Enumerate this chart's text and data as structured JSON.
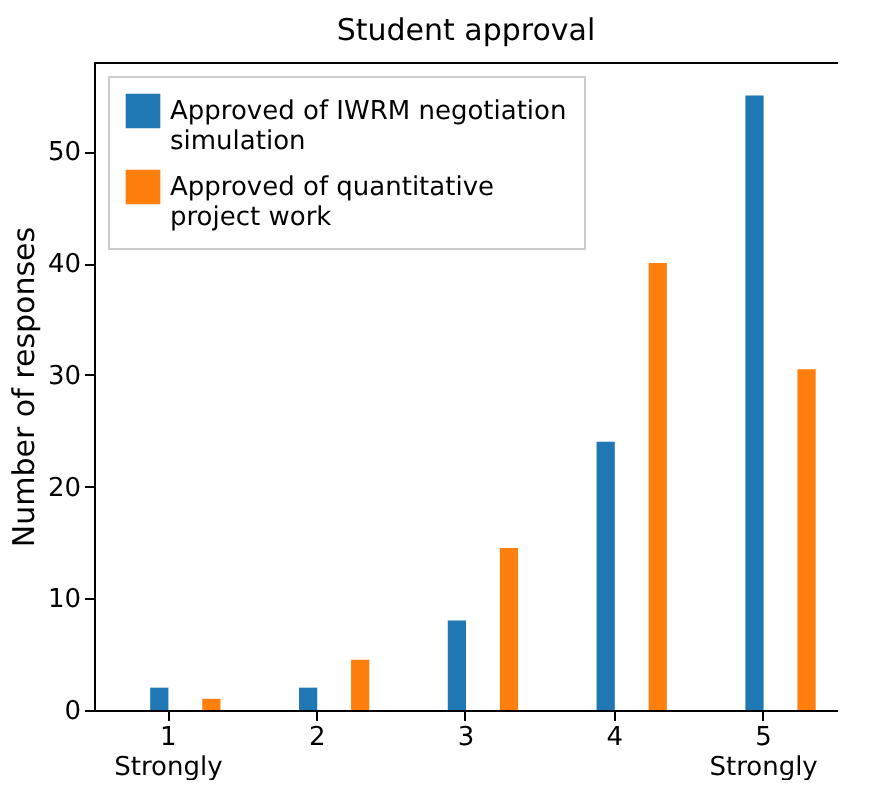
{
  "chart_data": {
    "type": "bar",
    "title": "Student approval",
    "ylabel": "Number of responses",
    "categories": [
      "1\nStrongly",
      "2",
      "3",
      "4",
      "5\nStrongly"
    ],
    "series": [
      {
        "name": "Approved of IWRM negotiation simulation",
        "color": "#1f77b4",
        "values": [
          2,
          2,
          8,
          24,
          55
        ]
      },
      {
        "name": "Approved of quantitative project work",
        "color": "#ff7f0e",
        "values": [
          1,
          4.5,
          14.5,
          40,
          30.5
        ]
      }
    ],
    "ylim": [
      0,
      58
    ],
    "yticks": [
      0,
      10,
      20,
      30,
      40,
      50
    ],
    "grid": false,
    "legend": "top left"
  }
}
